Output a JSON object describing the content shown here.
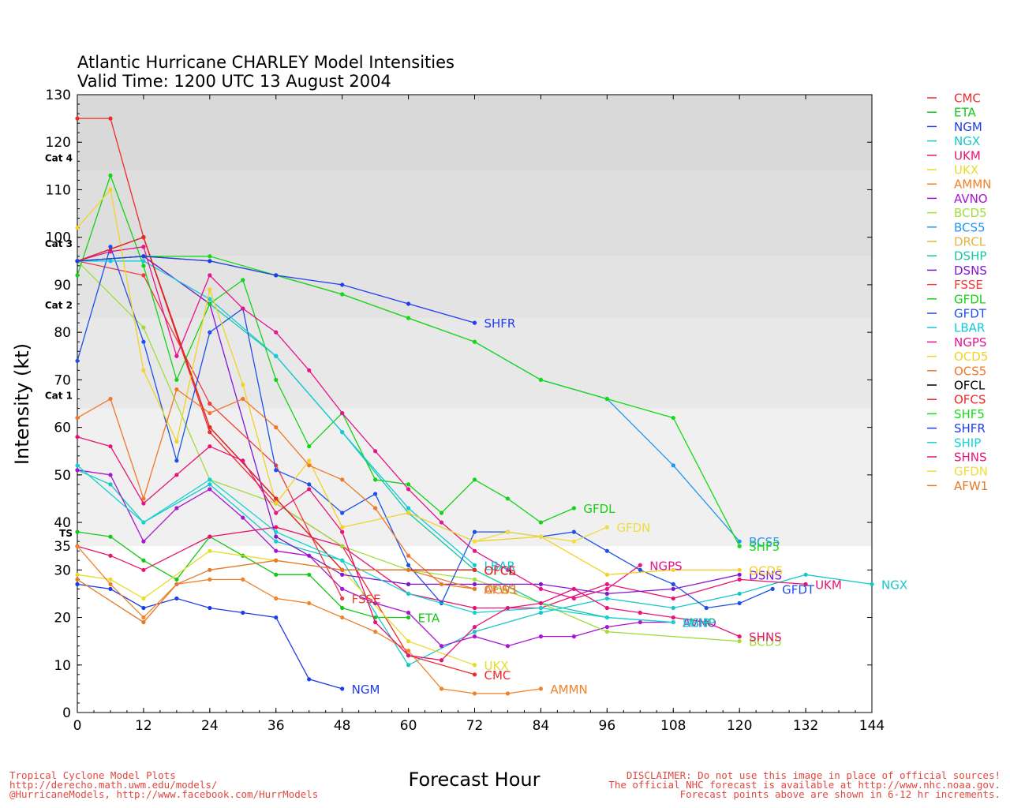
{
  "chart_data": {
    "type": "line",
    "title": "Atlantic Hurricane CHARLEY Model Intensities",
    "subtitle": "Valid Time: 1200 UTC 13 August 2004",
    "xlabel": "Forecast Hour",
    "ylabel": "Intensity (kt)",
    "xlim": [
      0,
      144
    ],
    "ylim": [
      0,
      130
    ],
    "xticks": [
      "0",
      "12",
      "24",
      "36",
      "48",
      "60",
      "72",
      "84",
      "96",
      "108",
      "120",
      "132",
      "144"
    ],
    "yticks": [
      "0",
      "10",
      "20",
      "30",
      "40",
      "50",
      "60",
      "70",
      "80",
      "90",
      "100",
      "110",
      "120",
      "130"
    ],
    "extra_yticks": [
      {
        "value": 35,
        "label": "35"
      }
    ],
    "categories": [
      {
        "label": "TS",
        "value": 35,
        "top": 64
      },
      {
        "label": "Cat 1",
        "value": 64,
        "top": 83
      },
      {
        "label": "Cat 2",
        "value": 83,
        "top": 96
      },
      {
        "label": "Cat 3",
        "value": 96,
        "top": 114
      },
      {
        "label": "Cat 4",
        "value": 114,
        "top": 130
      }
    ],
    "band_colors": [
      "#ffffff",
      "#f0f0f0",
      "#e8e8e8",
      "#e3e3e3",
      "#dedede",
      "#d9d9d9"
    ],
    "series": [
      {
        "name": "CMC",
        "color": "#ee2a2a",
        "label": "CMC",
        "x": [
          0,
          6,
          12,
          24,
          36,
          48,
          60,
          72
        ],
        "y": [
          125,
          125,
          100,
          59,
          44,
          35,
          12,
          8
        ]
      },
      {
        "name": "ETA",
        "color": "#14c814",
        "label": "ETA",
        "x": [
          0,
          6,
          12,
          18,
          24,
          30,
          36,
          42,
          48,
          54,
          60
        ],
        "y": [
          38,
          37,
          32,
          28,
          37,
          33,
          29,
          29,
          22,
          20,
          20
        ]
      },
      {
        "name": "NGM",
        "color": "#1e3ce6",
        "label": "NGM",
        "x": [
          0,
          6,
          12,
          18,
          24,
          30,
          36,
          42,
          48
        ],
        "y": [
          27,
          26,
          22,
          24,
          22,
          21,
          20,
          7,
          5
        ]
      },
      {
        "name": "NGX",
        "color": "#14c8c8",
        "label": "NGX",
        "x": [
          0,
          6,
          12,
          24,
          36,
          48,
          60,
          72,
          84,
          96,
          108,
          120,
          132,
          144
        ],
        "y": [
          51,
          48,
          40,
          48,
          36,
          32,
          10,
          17,
          21,
          24,
          22,
          25,
          29,
          27
        ]
      },
      {
        "name": "UKM",
        "color": "#e6146e",
        "label": "UKM",
        "x": [
          0,
          6,
          12,
          24,
          36,
          48,
          60,
          72,
          84,
          96,
          108,
          120,
          132
        ],
        "y": [
          35,
          33,
          30,
          37,
          39,
          35,
          25,
          22,
          22,
          27,
          24,
          28,
          27
        ]
      },
      {
        "name": "UKX",
        "color": "#e6dc28",
        "label": "UKX",
        "x": [
          0,
          6,
          12,
          24,
          36,
          48,
          60,
          72
        ],
        "y": [
          29,
          28,
          24,
          34,
          32,
          30,
          15,
          10
        ]
      },
      {
        "name": "AMMN",
        "color": "#f08228",
        "label": "AMMN",
        "x": [
          0,
          6,
          12,
          18,
          24,
          30,
          36,
          42,
          48,
          54,
          60,
          66,
          72,
          78,
          84
        ],
        "y": [
          35,
          27,
          20,
          27,
          28,
          28,
          24,
          23,
          20,
          17,
          13,
          5,
          4,
          4,
          5
        ]
      },
      {
        "name": "AVNO",
        "color": "#aa14d2",
        "label": "AVNO",
        "x": [
          0,
          6,
          12,
          18,
          24,
          30,
          36,
          42,
          48,
          54,
          60,
          66,
          72,
          78,
          84,
          90,
          96,
          102,
          108
        ],
        "y": [
          51,
          50,
          36,
          43,
          47,
          41,
          34,
          33,
          26,
          23,
          21,
          14,
          16,
          14,
          16,
          16,
          18,
          19,
          19
        ]
      },
      {
        "name": "BCD5",
        "color": "#a0dc3c",
        "label": "BCD5",
        "x": [
          0,
          12,
          24,
          36,
          48,
          60,
          72,
          84,
          96,
          120
        ],
        "y": [
          95,
          81,
          49,
          44,
          35,
          30,
          28,
          23,
          17,
          15
        ]
      },
      {
        "name": "BCS5",
        "color": "#1e96f0",
        "label": "BCS5",
        "x": [
          0,
          12,
          24,
          36,
          48,
          60,
          72,
          84,
          96,
          108,
          120
        ],
        "y": [
          95,
          96,
          95,
          92,
          88,
          83,
          78,
          70,
          66,
          52,
          36
        ]
      },
      {
        "name": "DRCL",
        "color": "#e6b43c",
        "label": "",
        "x": [
          0,
          12,
          24,
          36,
          48,
          60,
          72
        ],
        "y": [
          95,
          96,
          95,
          92,
          88,
          83,
          78
        ]
      },
      {
        "name": "DSHP",
        "color": "#14c8a0",
        "label": "DSHP",
        "x": [
          0,
          12,
          24,
          36,
          48,
          60,
          72,
          84,
          96,
          108
        ],
        "y": [
          95,
          96,
          86,
          75,
          59,
          42,
          30,
          23,
          20,
          19
        ]
      },
      {
        "name": "DSNS",
        "color": "#8214d2",
        "label": "DSNS",
        "x": [
          0,
          12,
          24,
          36,
          48,
          60,
          72,
          84,
          96,
          108,
          120
        ],
        "y": [
          95,
          96,
          86,
          37,
          29,
          27,
          27,
          27,
          25,
          26,
          29
        ]
      },
      {
        "name": "FSSE",
        "color": "#f03c3c",
        "label": "FSSE",
        "x": [
          0,
          12,
          24,
          36,
          48
        ],
        "y": [
          95,
          92,
          65,
          52,
          24
        ]
      },
      {
        "name": "GFDL",
        "color": "#14d214",
        "label": "GFDL",
        "x": [
          0,
          6,
          12,
          18,
          24,
          30,
          36,
          42,
          48,
          54,
          60,
          66,
          72,
          78,
          84,
          90
        ],
        "y": [
          92,
          113,
          94,
          70,
          86,
          91,
          70,
          56,
          63,
          49,
          48,
          42,
          49,
          45,
          40,
          43
        ]
      },
      {
        "name": "GFDT",
        "color": "#1e50e6",
        "label": "GFDT",
        "x": [
          0,
          6,
          12,
          18,
          24,
          30,
          36,
          42,
          48,
          54,
          60,
          66,
          72,
          78,
          84,
          90,
          96,
          102,
          108,
          114,
          120,
          126
        ],
        "y": [
          74,
          98,
          78,
          53,
          80,
          85,
          51,
          48,
          42,
          46,
          31,
          23,
          38,
          38,
          37,
          38,
          34,
          30,
          27,
          22,
          23,
          26
        ]
      },
      {
        "name": "LBAR",
        "color": "#14c8dc",
        "label": "LBAR",
        "x": [
          0,
          6,
          12,
          24,
          36,
          48,
          60,
          72
        ],
        "y": [
          95,
          95,
          95,
          87,
          75,
          59,
          43,
          31
        ]
      },
      {
        "name": "NGPS",
        "color": "#e6148c",
        "label": "NGPS",
        "x": [
          0,
          6,
          12,
          18,
          24,
          30,
          36,
          42,
          48,
          54,
          60,
          66,
          72,
          78,
          84,
          90,
          96,
          102
        ],
        "y": [
          95,
          97,
          98,
          75,
          92,
          85,
          80,
          72,
          63,
          55,
          47,
          40,
          34,
          30,
          26,
          24,
          26,
          31
        ]
      },
      {
        "name": "OCD5",
        "color": "#f0d228",
        "label": "OCD5",
        "x": [
          0,
          6,
          12,
          18,
          24,
          30,
          36,
          42,
          48,
          60,
          72,
          84,
          96,
          108,
          120
        ],
        "y": [
          102,
          110,
          72,
          57,
          89,
          69,
          44,
          53,
          39,
          42,
          36,
          37,
          29,
          30,
          30
        ]
      },
      {
        "name": "OCS5",
        "color": "#f07828",
        "label": "OCS5",
        "x": [
          0,
          6,
          12,
          18,
          24,
          30,
          36,
          42,
          48,
          54,
          60,
          66,
          72
        ],
        "y": [
          62,
          66,
          45,
          68,
          63,
          66,
          60,
          52,
          49,
          43,
          33,
          27,
          26
        ]
      },
      {
        "name": "OFCL",
        "color": "#000000",
        "label": "OFCL",
        "x": [
          0,
          12,
          24,
          36,
          48,
          72
        ],
        "y": [
          95,
          100,
          60,
          45,
          30,
          30
        ]
      },
      {
        "name": "OFCS",
        "color": "#f02828",
        "label": "OFCS",
        "x": [
          0,
          12,
          24,
          36,
          48,
          72
        ],
        "y": [
          95,
          100,
          60,
          45,
          30,
          30
        ]
      },
      {
        "name": "SHF5",
        "color": "#14dc14",
        "label": "SHF5",
        "x": [
          0,
          12,
          24,
          36,
          48,
          60,
          72,
          84,
          96,
          108,
          120
        ],
        "y": [
          95,
          96,
          96,
          92,
          88,
          83,
          78,
          70,
          66,
          62,
          35
        ]
      },
      {
        "name": "SHFR",
        "color": "#1e3cf0",
        "label": "SHFR",
        "x": [
          0,
          12,
          24,
          36,
          48,
          60,
          72
        ],
        "y": [
          95,
          96,
          95,
          92,
          90,
          86,
          82
        ]
      },
      {
        "name": "SHIP",
        "color": "#14d2d2",
        "label": "SHIP",
        "x": [
          0,
          12,
          24,
          36,
          48,
          60,
          72,
          84,
          96,
          108
        ],
        "y": [
          52,
          40,
          49,
          38,
          32,
          25,
          21,
          22,
          20,
          19
        ]
      },
      {
        "name": "SHNS",
        "color": "#e61478",
        "label": "SHNS",
        "x": [
          0,
          6,
          12,
          18,
          24,
          30,
          36,
          42,
          48,
          54,
          60,
          66,
          72,
          78,
          84,
          90,
          96,
          102,
          108,
          114,
          120
        ],
        "y": [
          58,
          56,
          44,
          50,
          56,
          53,
          42,
          47,
          38,
          19,
          12,
          11,
          18,
          22,
          23,
          26,
          22,
          21,
          20,
          19,
          16
        ]
      },
      {
        "name": "GFDN",
        "color": "#f0dc3c",
        "label": "GFDN",
        "x": [
          72,
          78,
          84,
          90,
          96
        ],
        "y": [
          36,
          38,
          37,
          36,
          39
        ]
      },
      {
        "name": "AFW1",
        "color": "#e67828",
        "label": "AFW1",
        "x": [
          0,
          12,
          18,
          24,
          36,
          48,
          60,
          72
        ],
        "y": [
          28,
          19,
          27,
          30,
          32,
          30,
          30,
          26
        ]
      }
    ]
  },
  "category_labels": [
    "TS",
    "Cat 1",
    "Cat 2",
    "Cat 3",
    "Cat 4"
  ],
  "legend": {
    "items": [
      "CMC",
      "ETA",
      "NGM",
      "NGX",
      "UKM",
      "UKX",
      "AMMN",
      "AVNO",
      "BCD5",
      "BCS5",
      "DRCL",
      "DSHP",
      "DSNS",
      "FSSE",
      "GFDL",
      "GFDT",
      "LBAR",
      "NGPS",
      "OCD5",
      "OCS5",
      "OFCL",
      "OFCS",
      "SHF5",
      "SHFR",
      "SHIP",
      "SHNS",
      "GFDN",
      "AFW1"
    ]
  },
  "footer": {
    "left": [
      "Tropical Cyclone Model Plots",
      "http://derecho.math.uwm.edu/models/",
      "@HurricaneModels, http://www.facebook.com/HurrModels"
    ],
    "right": [
      "DISCLAIMER: Do not use this image in place of official sources!",
      "The official NHC forecast is available at http://www.nhc.noaa.gov.",
      "Forecast points above are shown in 6-12 hr increments."
    ]
  }
}
